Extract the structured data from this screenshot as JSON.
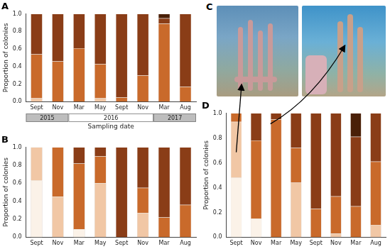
{
  "chart_data": [
    {
      "type": "bar",
      "title": "A",
      "y_label": "Proportion of colonies",
      "x_label": "Sampling date",
      "stacked": true,
      "grid": false,
      "categories": [
        "Sept",
        "Nov",
        "Mar",
        "May",
        "Sept",
        "Nov",
        "Mar",
        "Aug"
      ],
      "years": [
        "2015",
        "2015",
        "2016",
        "2016",
        "2016",
        "2016",
        "2017",
        "2017"
      ],
      "ylim": [
        0,
        1
      ],
      "yticks": [
        {
          "value": 0,
          "label": "0.0"
        },
        0.2,
        0.4,
        0.6,
        0.8,
        {
          "value": 1,
          "label": "1.0"
        }
      ],
      "series": [
        {
          "color": "#f1c7a5",
          "values": [
            0.04,
            0,
            0,
            0.04,
            0,
            0,
            0,
            0
          ]
        },
        {
          "color": "#c96a2b",
          "values": [
            0.5,
            0.46,
            0.61,
            0.39,
            0.05,
            0.3,
            0.89,
            0.17
          ]
        },
        {
          "color": "#8a3d17",
          "values": [
            0.46,
            0.54,
            0.39,
            0.57,
            0.95,
            0.7,
            0.06,
            0.83
          ]
        },
        {
          "color": "#4a2008",
          "values": [
            0,
            0,
            0,
            0,
            0,
            0,
            0.05,
            0
          ]
        }
      ]
    },
    {
      "type": "bar",
      "title": "B",
      "y_label": "Proportion of colonies",
      "stacked": true,
      "grid": false,
      "categories": [
        "Sept",
        "Nov",
        "Mar",
        "May",
        "Sept",
        "Nov",
        "Mar",
        "Aug"
      ],
      "ylim": [
        0,
        1
      ],
      "yticks": [
        {
          "value": 0,
          "label": "0.0"
        },
        0.2,
        0.4,
        0.6,
        0.8,
        {
          "value": 1,
          "label": "1.0"
        }
      ],
      "series": [
        {
          "color": "#fbf2e8",
          "values": [
            0.63,
            0,
            0.09,
            0,
            0,
            0,
            0,
            0
          ]
        },
        {
          "color": "#f1c7a5",
          "values": [
            0.37,
            0.45,
            0,
            0.6,
            0,
            0.27,
            0,
            0
          ]
        },
        {
          "color": "#c96a2b",
          "values": [
            0,
            0.55,
            0.73,
            0.3,
            0,
            0.28,
            0.22,
            0.36
          ]
        },
        {
          "color": "#8a3d17",
          "values": [
            0,
            0,
            0.18,
            0.1,
            1.0,
            0.45,
            0.78,
            0.64
          ]
        }
      ]
    },
    {
      "type": "bar",
      "title": "D",
      "y_label": "Proportion of colonies",
      "stacked": true,
      "grid": false,
      "categories": [
        "Sept",
        "Nov",
        "Mar",
        "May",
        "Sept",
        "Nov",
        "Mar",
        "Aug"
      ],
      "ylim": [
        0,
        1
      ],
      "yticks": [
        {
          "value": 0,
          "label": "0.0"
        },
        0.2,
        0.4,
        0.6,
        0.8,
        {
          "value": 1,
          "label": "1.0"
        }
      ],
      "series": [
        {
          "color": "#fbf2e8",
          "values": [
            0.48,
            0.15,
            0,
            0,
            0,
            0,
            0,
            0
          ]
        },
        {
          "color": "#f1c7a5",
          "values": [
            0.45,
            0,
            0,
            0.44,
            0,
            0.03,
            0,
            0.1
          ]
        },
        {
          "color": "#c96a2b",
          "values": [
            0.07,
            0.63,
            0.95,
            0.28,
            0.23,
            0.3,
            0.25,
            0.51
          ]
        },
        {
          "color": "#8a3d17",
          "values": [
            0,
            0.22,
            0.05,
            0.28,
            0.77,
            0.67,
            0.56,
            0.39
          ]
        },
        {
          "color": "#4a2008",
          "values": [
            0,
            0,
            0,
            0,
            0,
            0,
            0.19,
            0
          ]
        }
      ]
    }
  ],
  "photos": {
    "label": "C"
  }
}
